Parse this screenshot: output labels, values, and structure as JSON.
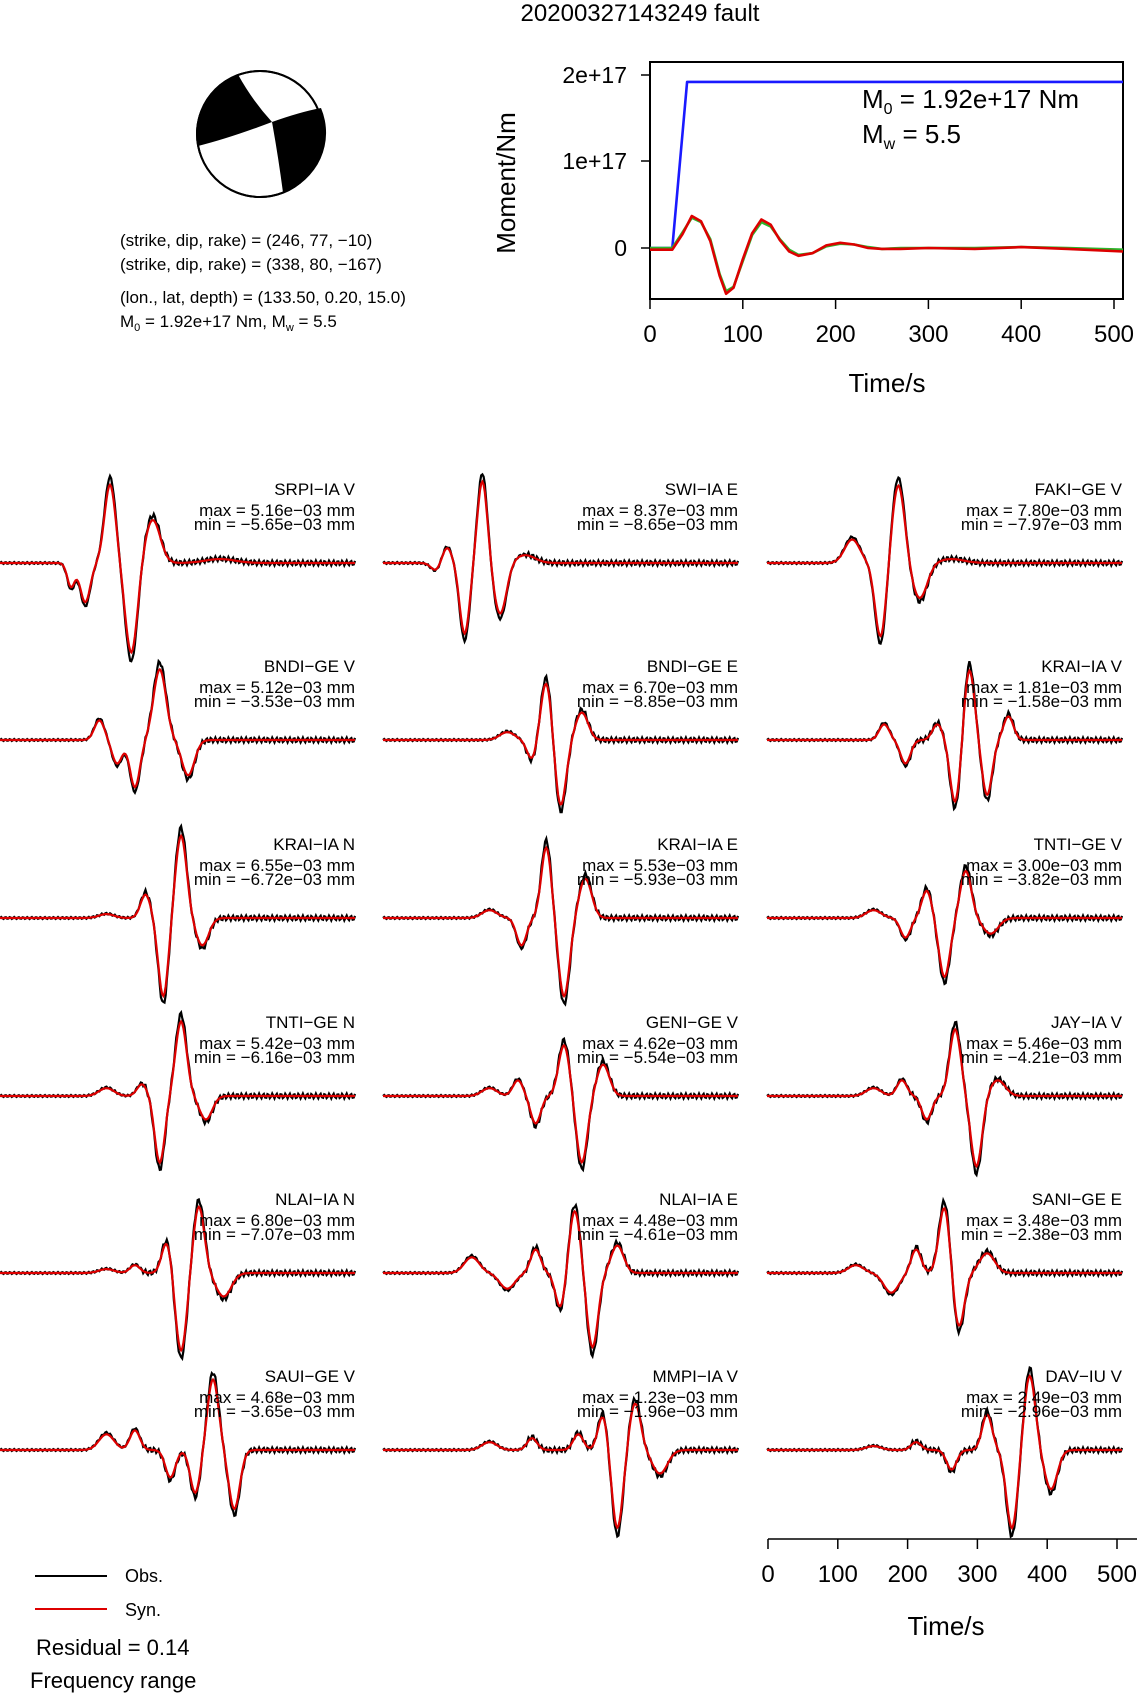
{
  "title": "20200327143249 fault",
  "mechanism": {
    "line1": "(strike, dip, rake) = (246, 77, −10)",
    "line2": "(strike, dip, rake) = (338, 80, −167)",
    "line3": "(lon., lat, depth) = (133.50, 0.20, 15.0)",
    "line4_pre": "M",
    "line4_sub": "0",
    "line4_post": " = 1.92e+17 Nm, M",
    "line4_sub2": "w",
    "line4_end": " = 5.5"
  },
  "moment_plot": {
    "ylabel": "Moment/Nm",
    "xlabel": "Time/s",
    "yticks": [
      "2e+17",
      "1e+17",
      "0"
    ],
    "xticks": [
      "0",
      "100",
      "200",
      "300",
      "400",
      "500"
    ],
    "m0_pre": "M",
    "m0_sub": "0",
    "m0_post": " = 1.92e+17 Nm",
    "mw_pre": "M",
    "mw_sub": "w",
    "mw_post": " = 5.5"
  },
  "chart_data": [
    {
      "type": "line",
      "xlabel": "Time/s",
      "ylabel": "Moment/Nm",
      "xlim": [
        0,
        510
      ],
      "ylim": [
        -5.5e+16,
        2.1e+17
      ],
      "series": [
        {
          "color": "#1a1aff",
          "x": [
            0,
            24,
            40,
            510
          ],
          "y": [
            0,
            0,
            1.92e+17,
            1.92e+17
          ]
        },
        {
          "color": "#2bb52b",
          "x": [
            0,
            24,
            35,
            45,
            55,
            65,
            75,
            82,
            90,
            100,
            110,
            120,
            130,
            140,
            150,
            160,
            175,
            190,
            205,
            220,
            235,
            250,
            270,
            300,
            350,
            400,
            450,
            510
          ],
          "y": [
            0,
            0,
            1.8e+16,
            3.5e+16,
            3e+16,
            1e+16,
            -3e+16,
            -5e+16,
            -4.5e+16,
            -1.5e+16,
            1.5e+16,
            3e+16,
            2.5e+16,
            1e+16,
            -2000000000000000.0,
            -8000000000000000.0,
            -6000000000000000.0,
            2000000000000000.0,
            5000000000000000.0,
            4000000000000000.0,
            1000000000000000.0,
            -1000000000000000.0,
            0,
            0,
            0,
            1000000000000000.0,
            0,
            -2000000000000000.0
          ]
        },
        {
          "color": "#dd0000",
          "x": [
            0,
            24,
            35,
            45,
            55,
            65,
            75,
            82,
            90,
            100,
            110,
            120,
            130,
            140,
            150,
            160,
            175,
            190,
            205,
            220,
            235,
            250,
            270,
            300,
            350,
            400,
            450,
            510
          ],
          "y": [
            -2000000000000000.0,
            -2000000000000000.0,
            1.6e+16,
            3.7e+16,
            3.1e+16,
            8000000000000000.0,
            -3.2e+16,
            -5.3e+16,
            -4.6e+16,
            -1.3e+16,
            1.7e+16,
            3.3e+16,
            2.7e+16,
            9000000000000000.0,
            -4000000000000000.0,
            -9000000000000000.0,
            -6000000000000000.0,
            3000000000000000.0,
            6000000000000000.0,
            4000000000000000.0,
            0,
            -1000000000000000.0,
            -1000000000000000.0,
            0,
            -1000000000000000.0,
            1000000000000000.0,
            -1000000000000000.0,
            -4000000000000000.0
          ]
        }
      ]
    }
  ],
  "waveforms": {
    "time_axis": {
      "xlabel": "Time/s",
      "ticks": [
        "0",
        "100",
        "200",
        "300",
        "400",
        "500"
      ],
      "xlim": [
        0,
        510
      ]
    },
    "stations": [
      {
        "name": "SRPI−IA V",
        "max": "max = 5.16e−03 mm",
        "min": "min = −5.65e−03 mm"
      },
      {
        "name": "SWI−IA E",
        "max": "max = 8.37e−03 mm",
        "min": "min = −8.65e−03 mm"
      },
      {
        "name": "FAKI−GE V",
        "max": "max = 7.80e−03 mm",
        "min": "min = −7.97e−03 mm"
      },
      {
        "name": "BNDI−GE V",
        "max": "max = 5.12e−03 mm",
        "min": "min = −3.53e−03 mm"
      },
      {
        "name": "BNDI−GE E",
        "max": "max = 6.70e−03 mm",
        "min": "min = −8.85e−03 mm"
      },
      {
        "name": "KRAI−IA V",
        "max": "max = 1.81e−03 mm",
        "min": "min = −1.58e−03 mm"
      },
      {
        "name": "KRAI−IA N",
        "max": "max = 6.55e−03 mm",
        "min": "min = −6.72e−03 mm"
      },
      {
        "name": "KRAI−IA E",
        "max": "max = 5.53e−03 mm",
        "min": "min = −5.93e−03 mm"
      },
      {
        "name": "TNTI−GE V",
        "max": "max = 3.00e−03 mm",
        "min": "min = −3.82e−03 mm"
      },
      {
        "name": "TNTI−GE N",
        "max": "max = 5.42e−03 mm",
        "min": "min = −6.16e−03 mm"
      },
      {
        "name": "GENI−GE V",
        "max": "max = 4.62e−03 mm",
        "min": "min = −5.54e−03 mm"
      },
      {
        "name": "JAY−IA V",
        "max": "max = 5.46e−03 mm",
        "min": "min = −4.21e−03 mm"
      },
      {
        "name": "NLAI−IA N",
        "max": "max = 6.80e−03 mm",
        "min": "min = −7.07e−03 mm"
      },
      {
        "name": "NLAI−IA E",
        "max": "max = 4.48e−03 mm",
        "min": "min = −4.61e−03 mm"
      },
      {
        "name": "SANI−GE E",
        "max": "max = 3.48e−03 mm",
        "min": "min = −2.38e−03 mm"
      },
      {
        "name": "SAUI−GE V",
        "max": "max = 4.68e−03 mm",
        "min": "min = −3.65e−03 mm"
      },
      {
        "name": "MMPI−IA V",
        "max": "max = 1.23e−03 mm",
        "min": "min = −1.96e−03 mm"
      },
      {
        "name": "DAV−IU V",
        "max": "max = 2.49e−03 mm",
        "min": "min = −2.96e−03 mm"
      }
    ]
  },
  "legend": {
    "obs": "Obs.",
    "syn": "Syn.",
    "obs_color": "#000000",
    "syn_color": "#dd0000"
  },
  "residual": "Residual = 0.14",
  "frequency": "Frequency range"
}
